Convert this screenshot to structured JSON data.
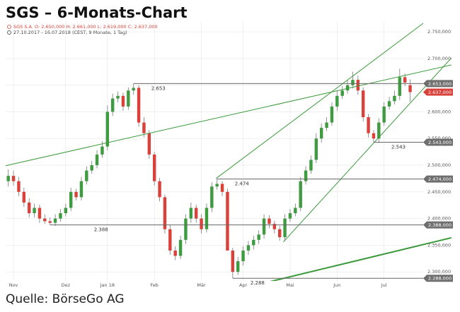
{
  "chart_data": {
    "type": "candlestick",
    "title": "SGS – 6-Monats-Chart",
    "subtitle": "SGS S.A.  O: 2.650,000  H: 2.661,000  L: 2.619,000  C: 2.637,000",
    "period": "27.10.2017 - 16.07.2018   (CEST, 9 Monate, 1 Tag)",
    "source": "Quelle: BörseGo AG",
    "categories": [
      null,
      "Nov",
      null,
      null,
      null,
      null,
      null,
      null,
      null,
      null,
      null,
      "Dez",
      null,
      null,
      null,
      null,
      null,
      null,
      null,
      "Jan 18",
      null,
      null,
      null,
      null,
      null,
      null,
      null,
      null,
      "Feb",
      null,
      null,
      null,
      null,
      null,
      null,
      null,
      null,
      "Mär",
      null,
      null,
      null,
      null,
      null,
      null,
      null,
      "Apr",
      null,
      null,
      null,
      null,
      null,
      null,
      null,
      null,
      "Mai",
      null,
      null,
      null,
      null,
      null,
      null,
      null,
      null,
      "Jun",
      null,
      null,
      null,
      null,
      null,
      null,
      null,
      null,
      "Jul",
      null,
      null,
      null,
      null,
      null
    ],
    "open": [
      2470,
      2480,
      2470,
      2450,
      2430,
      2410,
      2420,
      2400,
      2395,
      2392,
      2400,
      2410,
      2420,
      2450,
      2440,
      2470,
      2490,
      2500,
      2520,
      2535,
      2600,
      2625,
      2630,
      2610,
      2640,
      2645,
      2580,
      2560,
      2520,
      2470,
      2440,
      2380,
      2340,
      2330,
      2360,
      2400,
      2420,
      2400,
      2380,
      2420,
      2460,
      2465,
      2450,
      2340,
      2300,
      2320,
      2340,
      2350,
      2360,
      2370,
      2400,
      2390,
      2380,
      2365,
      2400,
      2410,
      2420,
      2470,
      2490,
      2510,
      2550,
      2570,
      2580,
      2610,
      2630,
      2640,
      2650,
      2660,
      2640,
      2590,
      2560,
      2550,
      2580,
      2610,
      2620,
      2630,
      2665,
      2650
    ],
    "high": [
      2492,
      2490,
      2478,
      2458,
      2438,
      2428,
      2426,
      2408,
      2402,
      2408,
      2418,
      2428,
      2458,
      2456,
      2478,
      2498,
      2508,
      2528,
      2545,
      2612,
      2634,
      2638,
      2636,
      2646,
      2653,
      2650,
      2590,
      2566,
      2525,
      2476,
      2445,
      2388,
      2348,
      2368,
      2408,
      2430,
      2426,
      2408,
      2428,
      2468,
      2474,
      2470,
      2456,
      2345,
      2328,
      2348,
      2358,
      2368,
      2378,
      2408,
      2406,
      2396,
      2386,
      2408,
      2418,
      2428,
      2478,
      2498,
      2518,
      2560,
      2578,
      2590,
      2618,
      2640,
      2648,
      2660,
      2675,
      2668,
      2646,
      2596,
      2566,
      2588,
      2618,
      2628,
      2640,
      2681,
      2672,
      2661
    ],
    "low": [
      2460,
      2462,
      2442,
      2422,
      2402,
      2402,
      2392,
      2390,
      2388,
      2386,
      2394,
      2404,
      2414,
      2434,
      2434,
      2464,
      2484,
      2494,
      2514,
      2528,
      2592,
      2618,
      2602,
      2604,
      2632,
      2572,
      2552,
      2512,
      2462,
      2432,
      2372,
      2332,
      2322,
      2324,
      2352,
      2392,
      2392,
      2372,
      2374,
      2412,
      2454,
      2442,
      2342,
      2288,
      2294,
      2312,
      2332,
      2342,
      2352,
      2362,
      2382,
      2372,
      2358,
      2358,
      2394,
      2404,
      2414,
      2464,
      2484,
      2504,
      2542,
      2564,
      2574,
      2602,
      2624,
      2634,
      2644,
      2632,
      2582,
      2552,
      2543,
      2542,
      2574,
      2604,
      2614,
      2622,
      2648,
      2619
    ],
    "close": [
      2480,
      2470,
      2450,
      2430,
      2410,
      2420,
      2400,
      2395,
      2392,
      2400,
      2410,
      2420,
      2450,
      2440,
      2470,
      2490,
      2500,
      2520,
      2535,
      2600,
      2625,
      2630,
      2610,
      2640,
      2645,
      2580,
      2560,
      2520,
      2470,
      2440,
      2380,
      2340,
      2330,
      2360,
      2400,
      2420,
      2400,
      2380,
      2420,
      2460,
      2465,
      2450,
      2340,
      2300,
      2320,
      2340,
      2350,
      2360,
      2370,
      2400,
      2390,
      2380,
      2365,
      2400,
      2410,
      2420,
      2470,
      2490,
      2510,
      2550,
      2570,
      2580,
      2610,
      2630,
      2640,
      2650,
      2660,
      2640,
      2590,
      2560,
      2550,
      2580,
      2610,
      2620,
      2630,
      2665,
      2655,
      2637
    ],
    "up_color": "#3f9b3f",
    "down_color": "#d9413a",
    "ylim": [
      2283,
      2770
    ],
    "yticks": [
      {
        "value": 2300,
        "label": "2.300,000"
      },
      {
        "value": 2350,
        "label": "2.350,000"
      },
      {
        "value": 2400,
        "label": "2.400,000"
      },
      {
        "value": 2450,
        "label": "2.450,000"
      },
      {
        "value": 2500,
        "label": "2.500,000"
      },
      {
        "value": 2550,
        "label": "2.550,000"
      },
      {
        "value": 2600,
        "label": "2.600,000"
      },
      {
        "value": 2650,
        "label": "2.650,000"
      },
      {
        "value": 2700,
        "label": "2.700,000"
      },
      {
        "value": 2750,
        "label": "2.750,000"
      }
    ],
    "grid": true,
    "levels": [
      {
        "value": 2653,
        "label": "2.653",
        "from": 24,
        "tag": "2.653,000"
      },
      {
        "value": 2543,
        "label": "2.543",
        "from": 70,
        "tag": "2.543,000"
      },
      {
        "value": 2474,
        "label": "2.474",
        "from": 40,
        "tag": "2.474,000"
      },
      {
        "value": 2388,
        "label": "2.388",
        "from": 8,
        "tag": "2.388,000"
      },
      {
        "value": 2288,
        "label": "2.288",
        "from": 43,
        "tag": "2.288,000"
      }
    ],
    "last_tag": {
      "value": 2637,
      "label": "2.637,000"
    },
    "trendlines": [
      {
        "from": [
          -0.5,
          2499
        ],
        "to": [
          84.9,
          2688
        ],
        "width": 1
      },
      {
        "from": [
          39.8,
          2475
        ],
        "to": [
          79.5,
          2766
        ],
        "width": 1
      },
      {
        "from": [
          52.7,
          2356
        ],
        "to": [
          84.9,
          2701
        ],
        "width": 1
      },
      {
        "from": [
          45.2,
          2270
        ],
        "to": [
          84.9,
          2364
        ],
        "width": 2
      }
    ],
    "trend_color": "#3a9a3a"
  }
}
